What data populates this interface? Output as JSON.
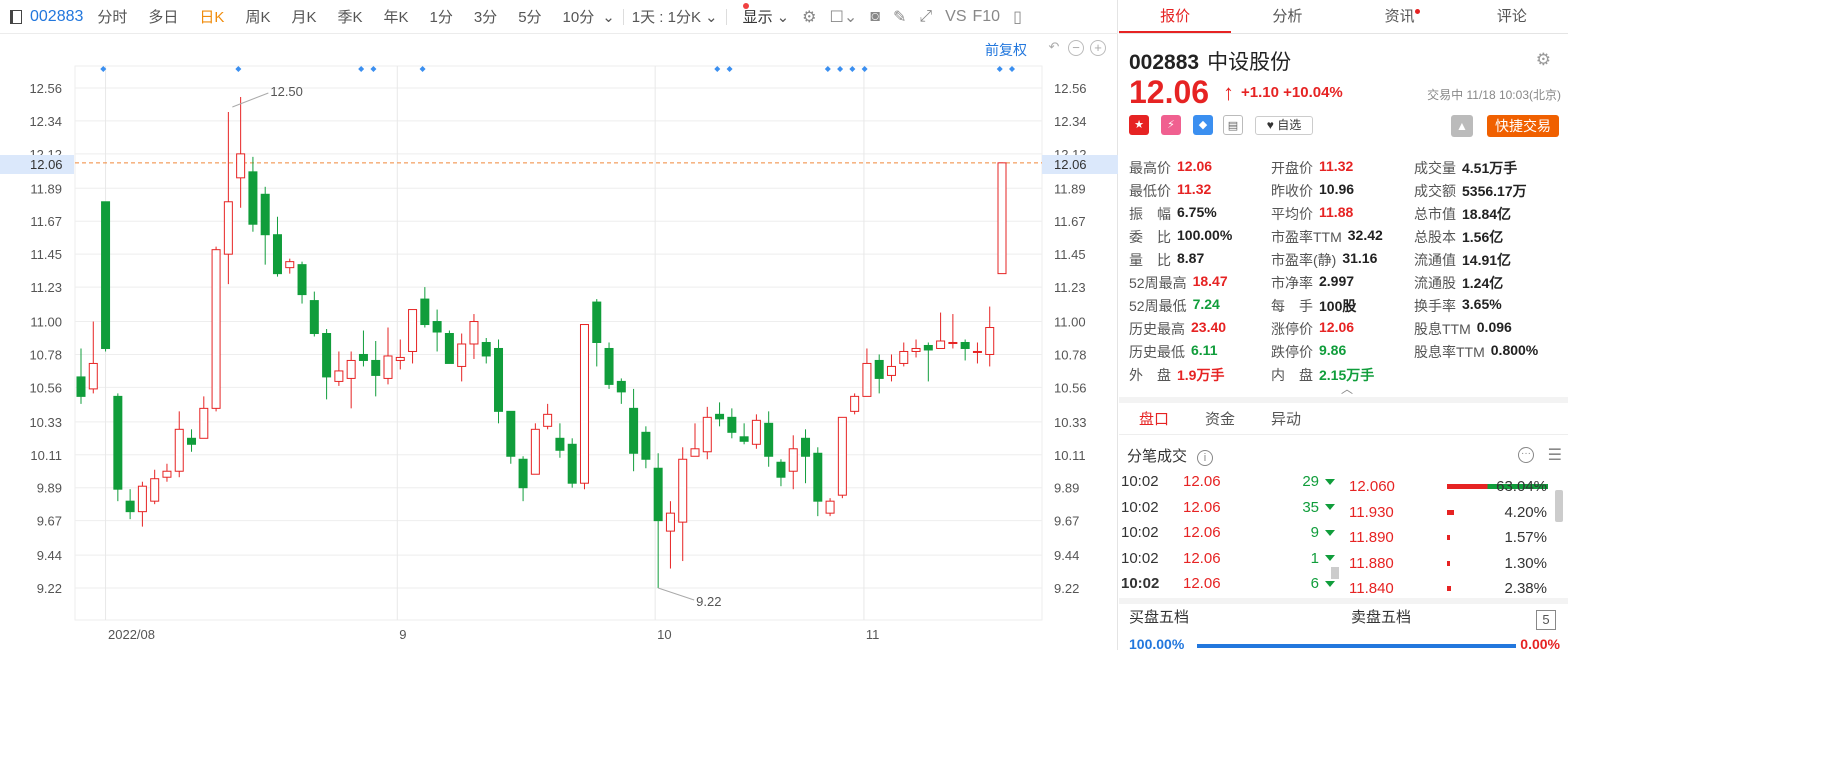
{
  "toolbar": {
    "code": "002883",
    "periods": [
      "分时",
      "多日",
      "日K",
      "周K",
      "月K",
      "季K",
      "年K",
      "1分",
      "3分",
      "5分",
      "10分"
    ],
    "active_period": "日K",
    "interval_select": "1天 : 1分K",
    "display": "显示",
    "vs_label": "VS",
    "f10_label": "F10"
  },
  "chart": {
    "adjust_label": "前复权",
    "current_price_tag": "12.06",
    "high_marker": "12.50",
    "low_marker": "9.22",
    "x_labels": [
      "2022/08",
      "9",
      "10",
      "11"
    ],
    "colors": {
      "up": "#e62323",
      "down": "#109d3b",
      "grid": "#eeeeee",
      "dash": "#f0883a",
      "axis_text": "#555555"
    }
  },
  "chart_data": {
    "type": "candlestick",
    "y_ticks": [
      12.56,
      12.34,
      12.12,
      11.89,
      11.67,
      11.45,
      11.23,
      11.0,
      10.78,
      10.56,
      10.33,
      10.11,
      9.89,
      9.67,
      9.44,
      9.22
    ],
    "y_tick_labels": [
      "12.56",
      "12.34",
      "12.12",
      "11.89",
      "11.67",
      "11.45",
      "11.23",
      "11.00",
      "10.78",
      "10.56",
      "10.33",
      "10.11",
      "9.89",
      "9.67",
      "9.44",
      "9.22"
    ],
    "ylim": [
      9.02,
      12.63
    ],
    "last_price": 12.06,
    "candles": [
      [
        10.63,
        10.5,
        10.82,
        10.45
      ],
      [
        10.55,
        10.72,
        11.0,
        10.52
      ],
      [
        11.8,
        10.82,
        11.8,
        10.8
      ],
      [
        10.5,
        9.88,
        10.52,
        9.8
      ],
      [
        9.8,
        9.73,
        9.88,
        9.68
      ],
      [
        9.73,
        9.9,
        9.93,
        9.63
      ],
      [
        9.8,
        9.95,
        10.01,
        9.78
      ],
      [
        9.96,
        10.0,
        10.05,
        9.93
      ],
      [
        10.0,
        10.28,
        10.4,
        9.96
      ],
      [
        10.22,
        10.18,
        10.28,
        10.13
      ],
      [
        10.22,
        10.42,
        10.5,
        10.22
      ],
      [
        10.42,
        11.48,
        11.5,
        10.4
      ],
      [
        11.45,
        11.8,
        12.4,
        11.25
      ],
      [
        11.96,
        12.12,
        12.5,
        11.76
      ],
      [
        12.0,
        11.65,
        12.1,
        11.6
      ],
      [
        11.85,
        11.58,
        11.9,
        11.38
      ],
      [
        11.58,
        11.32,
        11.7,
        11.3
      ],
      [
        11.36,
        11.4,
        11.42,
        11.32
      ],
      [
        11.38,
        11.18,
        11.4,
        11.12
      ],
      [
        11.14,
        10.92,
        11.2,
        10.9
      ],
      [
        10.92,
        10.63,
        10.95,
        10.48
      ],
      [
        10.6,
        10.67,
        10.8,
        10.57
      ],
      [
        10.62,
        10.74,
        10.8,
        10.42
      ],
      [
        10.78,
        10.74,
        10.94,
        10.7
      ],
      [
        10.74,
        10.64,
        10.87,
        10.5
      ],
      [
        10.62,
        10.77,
        10.96,
        10.58
      ],
      [
        10.74,
        10.76,
        10.88,
        10.68
      ],
      [
        10.8,
        11.08,
        11.08,
        10.72
      ],
      [
        11.15,
        10.98,
        11.23,
        10.96
      ],
      [
        11.0,
        10.93,
        11.08,
        10.8
      ],
      [
        10.92,
        10.72,
        10.94,
        10.72
      ],
      [
        10.7,
        10.85,
        10.92,
        10.6
      ],
      [
        10.85,
        11.0,
        11.05,
        10.75
      ],
      [
        10.86,
        10.77,
        10.89,
        10.72
      ],
      [
        10.82,
        10.4,
        10.88,
        10.32
      ],
      [
        10.4,
        10.1,
        10.4,
        10.05
      ],
      [
        10.08,
        9.89,
        10.1,
        9.8
      ],
      [
        9.98,
        10.28,
        10.32,
        9.98
      ],
      [
        10.3,
        10.38,
        10.45,
        10.28
      ],
      [
        10.22,
        10.14,
        10.32,
        10.09
      ],
      [
        10.18,
        9.92,
        10.22,
        9.89
      ],
      [
        9.92,
        10.98,
        10.98,
        9.88
      ],
      [
        11.13,
        10.86,
        11.15,
        10.7
      ],
      [
        10.82,
        10.58,
        10.86,
        10.55
      ],
      [
        10.6,
        10.53,
        10.62,
        10.45
      ],
      [
        10.42,
        10.12,
        10.55,
        10.0
      ],
      [
        10.26,
        10.08,
        10.3,
        10.02
      ],
      [
        10.02,
        9.67,
        10.12,
        9.22
      ],
      [
        9.6,
        9.72,
        9.8,
        9.35
      ],
      [
        9.66,
        10.08,
        10.16,
        9.4
      ],
      [
        10.1,
        10.15,
        10.32,
        10.1
      ],
      [
        10.13,
        10.36,
        10.43,
        10.08
      ],
      [
        10.38,
        10.35,
        10.46,
        10.3
      ],
      [
        10.36,
        10.26,
        10.42,
        10.22
      ],
      [
        10.23,
        10.2,
        10.32,
        10.18
      ],
      [
        10.18,
        10.34,
        10.38,
        10.15
      ],
      [
        10.32,
        10.1,
        10.4,
        10.03
      ],
      [
        10.06,
        9.96,
        10.08,
        9.9
      ],
      [
        10.0,
        10.15,
        10.24,
        9.88
      ],
      [
        10.22,
        10.1,
        10.28,
        9.92
      ],
      [
        10.12,
        9.8,
        10.16,
        9.7
      ],
      [
        9.72,
        9.8,
        9.82,
        9.7
      ],
      [
        9.84,
        10.36,
        10.36,
        9.82
      ],
      [
        10.4,
        10.5,
        10.52,
        10.38
      ],
      [
        10.5,
        10.72,
        10.82,
        10.55
      ],
      [
        10.74,
        10.62,
        10.78,
        10.52
      ],
      [
        10.64,
        10.7,
        10.78,
        10.6
      ],
      [
        10.72,
        10.8,
        10.86,
        10.7
      ],
      [
        10.8,
        10.82,
        10.88,
        10.76
      ],
      [
        10.84,
        10.81,
        10.86,
        10.6
      ],
      [
        10.82,
        10.87,
        11.06,
        10.82
      ],
      [
        10.86,
        10.86,
        11.05,
        10.82
      ],
      [
        10.86,
        10.82,
        10.88,
        10.74
      ],
      [
        10.8,
        10.8,
        10.86,
        10.72
      ],
      [
        10.78,
        10.96,
        11.1,
        10.7
      ],
      [
        11.32,
        12.06,
        12.06,
        11.32
      ]
    ]
  },
  "right": {
    "tabs": [
      "报价",
      "分析",
      "资讯",
      "评论"
    ],
    "active_tab": "报价",
    "code": "002883",
    "name": "中设股份",
    "price": "12.06",
    "change": "+1.10",
    "change_pct": "+10.04%",
    "status": "交易中 11/18 10:03(北京)",
    "watch_label": "自选",
    "quick_trade": "快捷交易",
    "quote_rows": [
      [
        [
          "最高价",
          "12.06",
          "red"
        ],
        [
          "开盘价",
          "11.32",
          "red"
        ],
        [
          "成交量",
          "4.51万手",
          "dark"
        ]
      ],
      [
        [
          "最低价",
          "11.32",
          "red"
        ],
        [
          "昨收价",
          "10.96",
          "dark"
        ],
        [
          "成交额",
          "5356.17万",
          "dark"
        ]
      ],
      [
        [
          "振　幅",
          "6.75%",
          "dark"
        ],
        [
          "平均价",
          "11.88",
          "red"
        ],
        [
          "总市值",
          "18.84亿",
          "dark"
        ]
      ],
      [
        [
          "委　比",
          "100.00%",
          "dark"
        ],
        [
          "市盈率TTM",
          "32.42",
          "dark"
        ],
        [
          "总股本",
          "1.56亿",
          "dark"
        ]
      ],
      [
        [
          "量　比",
          "8.87",
          "dark"
        ],
        [
          "市盈率(静)",
          "31.16",
          "dark"
        ],
        [
          "流通值",
          "14.91亿",
          "dark"
        ]
      ],
      [
        [
          "52周最高",
          "18.47",
          "red"
        ],
        [
          "市净率",
          "2.997",
          "dark"
        ],
        [
          "流通股",
          "1.24亿",
          "dark"
        ]
      ],
      [
        [
          "52周最低",
          "7.24",
          "green"
        ],
        [
          "每　手",
          "100股",
          "dark"
        ],
        [
          "换手率",
          "3.65%",
          "dark"
        ]
      ],
      [
        [
          "历史最高",
          "23.40",
          "red"
        ],
        [
          "涨停价",
          "12.06",
          "red"
        ],
        [
          "股息TTM",
          "0.096",
          "dark"
        ]
      ],
      [
        [
          "历史最低",
          "6.11",
          "green"
        ],
        [
          "跌停价",
          "9.86",
          "green"
        ],
        [
          "股息率TTM",
          "0.800%",
          "dark"
        ]
      ],
      [
        [
          "外　盘",
          "1.9万手",
          "red"
        ],
        [
          "内　盘",
          "2.15万手",
          "green"
        ],
        [
          "",
          ""
        ]
      ]
    ],
    "sub_tabs": [
      "盘口",
      "资金",
      "异动"
    ],
    "ticks_title": "分笔成交",
    "ticks": [
      [
        "10:02",
        "12.06",
        "29"
      ],
      [
        "10:02",
        "12.06",
        "35"
      ],
      [
        "10:02",
        "12.06",
        "9"
      ],
      [
        "10:02",
        "12.06",
        "1"
      ],
      [
        "10:02",
        "12.06",
        "6"
      ]
    ],
    "distribution": [
      [
        "12.060",
        "63.04%",
        0.63
      ],
      [
        "11.930",
        "4.20%",
        0.042
      ],
      [
        "11.890",
        "1.57%",
        0.016
      ],
      [
        "11.880",
        "1.30%",
        0.013
      ],
      [
        "11.840",
        "2.38%",
        0.024
      ]
    ],
    "buy5": "买盘五档",
    "sell5": "卖盘五档",
    "five_box": "5",
    "buy_ratio": "100.00%",
    "sell_ratio": "0.00%"
  }
}
